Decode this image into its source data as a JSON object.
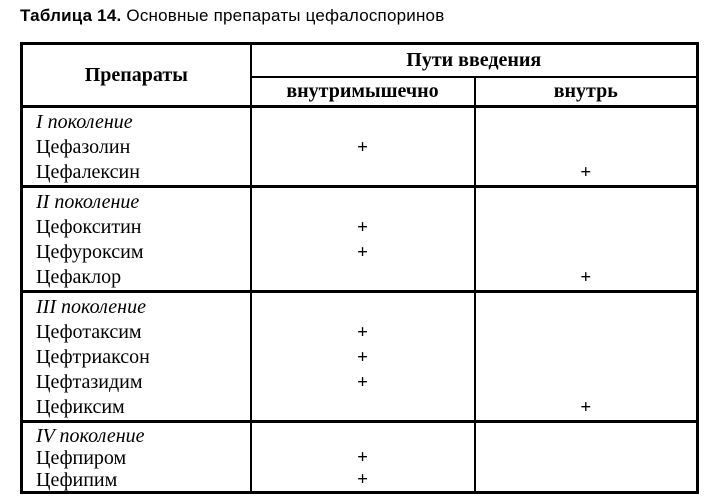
{
  "page": {
    "title_label": "Таблица 14.",
    "title_text": "Основные препараты цефалоспоринов"
  },
  "colors": {
    "ink": "#000000",
    "paper": "#ffffff"
  },
  "table": {
    "header": {
      "drugs": "Препараты",
      "routes": "Пути введения",
      "intramuscular": "внутримышечно",
      "oral": "внутрь"
    },
    "groups": [
      {
        "generation": "I поколение",
        "drugs": [
          {
            "name": "Цефазолин",
            "im": "+",
            "oral": ""
          },
          {
            "name": "Цефалексин",
            "im": "",
            "oral": "+"
          }
        ]
      },
      {
        "generation": "II поколение",
        "drugs": [
          {
            "name": "Цефокситин",
            "im": "+",
            "oral": ""
          },
          {
            "name": "Цефуроксим",
            "im": "+",
            "oral": ""
          },
          {
            "name": "Цефаклор",
            "im": "",
            "oral": "+"
          }
        ]
      },
      {
        "generation": "III поколение",
        "drugs": [
          {
            "name": "Цефотаксим",
            "im": "+",
            "oral": ""
          },
          {
            "name": "Цефтриаксон",
            "im": "+",
            "oral": ""
          },
          {
            "name": "Цефтазидим",
            "im": "+",
            "oral": ""
          },
          {
            "name": "Цефиксим",
            "im": "",
            "oral": "+"
          }
        ]
      },
      {
        "generation": "IV поколение",
        "drugs": [
          {
            "name": "Цефпиром",
            "im": "+",
            "oral": ""
          },
          {
            "name": "Цефипим",
            "im": "+",
            "oral": ""
          }
        ]
      }
    ]
  }
}
